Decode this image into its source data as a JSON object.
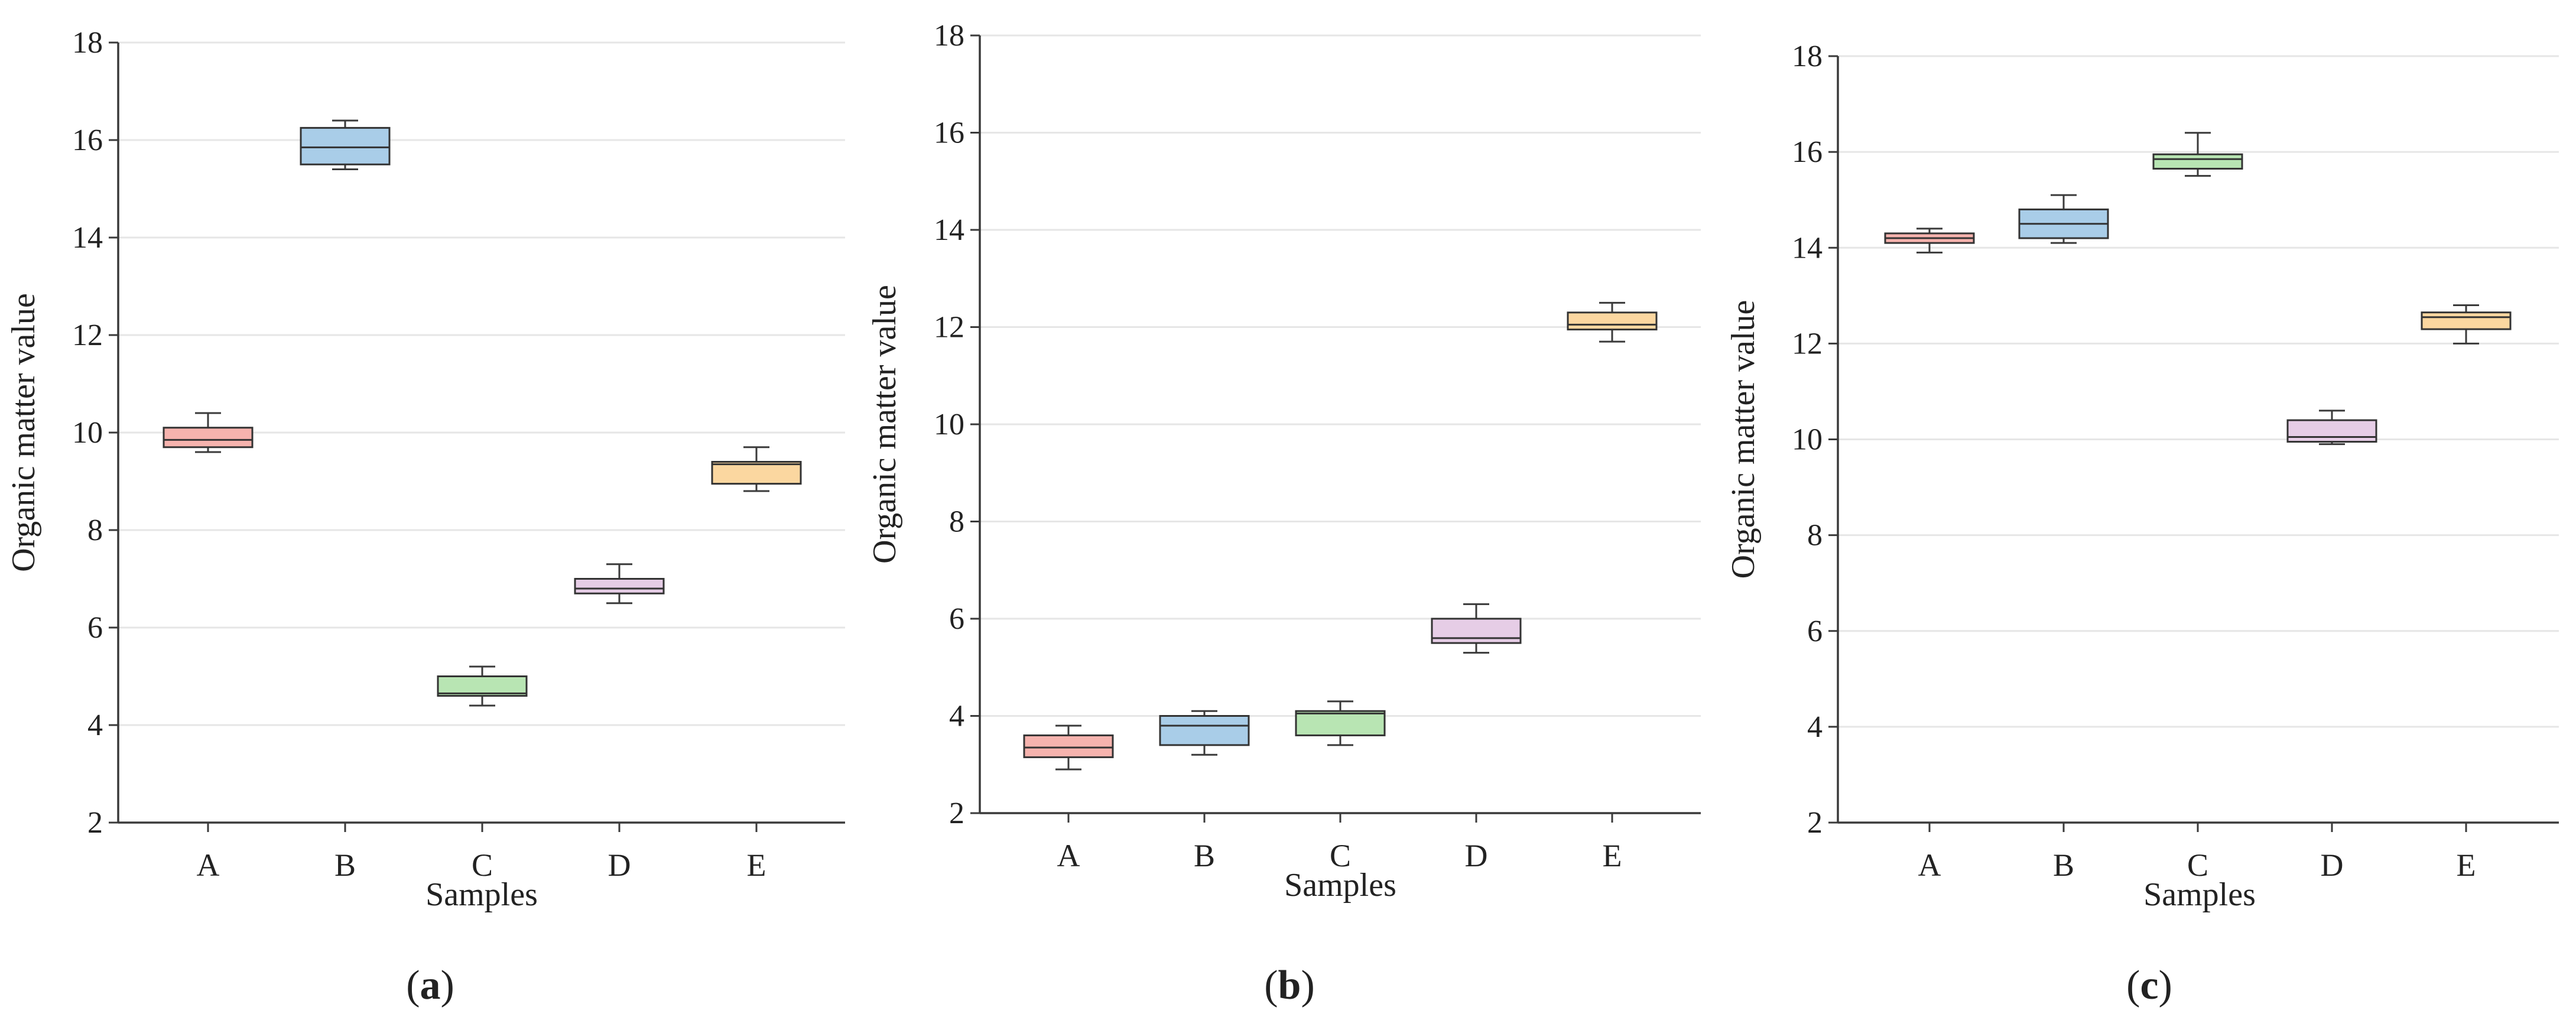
{
  "colors": {
    "A": {
      "fill": "#f6b3ae",
      "stroke": "#c8504a"
    },
    "B": {
      "fill": "#a9cde8",
      "stroke": "#3d6f99"
    },
    "C": {
      "fill": "#b8e5b3",
      "stroke": "#4e8f48"
    },
    "D": {
      "fill": "#e6cde6",
      "stroke": "#8e5a8e"
    },
    "E": {
      "fill": "#fbd7a0",
      "stroke": "#b07a2a"
    }
  },
  "chart_data": [
    {
      "type": "box",
      "panel_label": "a",
      "title": "",
      "xlabel": "Samples",
      "ylabel": "Organic matter value",
      "ylim": [
        2,
        18
      ],
      "yticks": [
        2,
        4,
        6,
        8,
        10,
        12,
        14,
        16,
        18
      ],
      "grid": true,
      "categories": [
        "A",
        "B",
        "C",
        "D",
        "E"
      ],
      "boxes": [
        {
          "name": "A",
          "min": 9.6,
          "q1": 9.7,
          "median": 9.85,
          "q3": 10.1,
          "max": 10.4
        },
        {
          "name": "B",
          "min": 15.4,
          "q1": 15.5,
          "median": 15.85,
          "q3": 16.25,
          "max": 16.4
        },
        {
          "name": "C",
          "min": 4.4,
          "q1": 4.6,
          "median": 4.65,
          "q3": 5.0,
          "max": 5.2
        },
        {
          "name": "D",
          "min": 6.5,
          "q1": 6.7,
          "median": 6.8,
          "q3": 7.0,
          "max": 7.3
        },
        {
          "name": "E",
          "min": 8.8,
          "q1": 8.95,
          "median": 9.35,
          "q3": 9.4,
          "max": 9.7
        }
      ]
    },
    {
      "type": "box",
      "panel_label": "b",
      "title": "",
      "xlabel": "Samples",
      "ylabel": "Organic matter value",
      "ylim": [
        2,
        18
      ],
      "yticks": [
        2,
        4,
        6,
        8,
        10,
        12,
        14,
        16,
        18
      ],
      "grid": true,
      "categories": [
        "A",
        "B",
        "C",
        "D",
        "E"
      ],
      "boxes": [
        {
          "name": "A",
          "min": 2.9,
          "q1": 3.15,
          "median": 3.35,
          "q3": 3.6,
          "max": 3.8
        },
        {
          "name": "B",
          "min": 3.2,
          "q1": 3.4,
          "median": 3.8,
          "q3": 4.0,
          "max": 4.1
        },
        {
          "name": "C",
          "min": 3.4,
          "q1": 3.6,
          "median": 4.05,
          "q3": 4.1,
          "max": 4.3
        },
        {
          "name": "D",
          "min": 5.3,
          "q1": 5.5,
          "median": 5.6,
          "q3": 6.0,
          "max": 6.3
        },
        {
          "name": "E",
          "min": 11.7,
          "q1": 11.95,
          "median": 12.05,
          "q3": 12.3,
          "max": 12.5
        }
      ]
    },
    {
      "type": "box",
      "panel_label": "c",
      "title": "",
      "xlabel": "Samples",
      "ylabel": "Organic matter value",
      "ylim": [
        2,
        18
      ],
      "yticks": [
        2,
        4,
        6,
        8,
        10,
        12,
        14,
        16,
        18
      ],
      "grid": true,
      "categories": [
        "A",
        "B",
        "C",
        "D",
        "E"
      ],
      "boxes": [
        {
          "name": "A",
          "min": 13.9,
          "q1": 14.1,
          "median": 14.2,
          "q3": 14.3,
          "max": 14.4
        },
        {
          "name": "B",
          "min": 14.1,
          "q1": 14.2,
          "median": 14.5,
          "q3": 14.8,
          "max": 15.1
        },
        {
          "name": "C",
          "min": 15.5,
          "q1": 15.65,
          "median": 15.85,
          "q3": 15.95,
          "max": 16.4
        },
        {
          "name": "D",
          "min": 9.9,
          "q1": 9.95,
          "median": 10.05,
          "q3": 10.4,
          "max": 10.6
        },
        {
          "name": "E",
          "min": 12.0,
          "q1": 12.3,
          "median": 12.55,
          "q3": 12.65,
          "max": 12.8
        }
      ]
    }
  ]
}
